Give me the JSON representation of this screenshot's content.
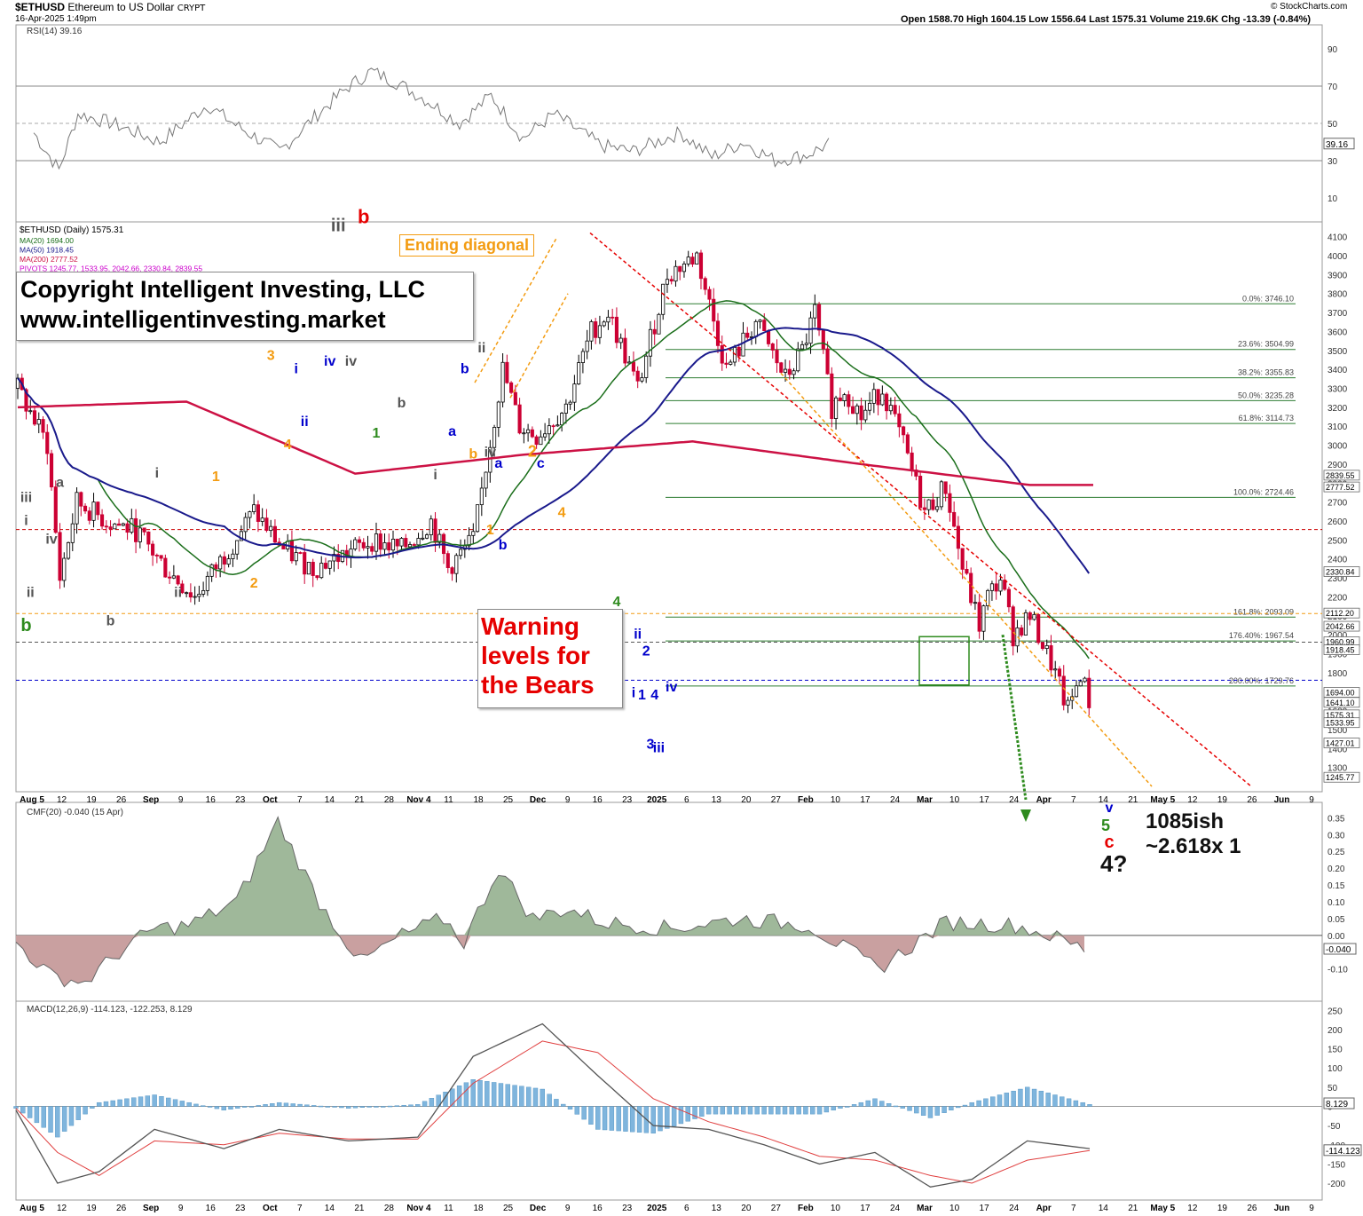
{
  "header": {
    "symbol": "$ETHUSD",
    "name": "Ethereum to US Dollar",
    "exchange": "CRYPT",
    "datetime": "16-Apr-2025 1:49pm",
    "ohlc": "Open 1588.70  High 1604.15  Low 1556.64  Last 1575.31  Volume 219.6K  Chg -13.39 (-0.84%)",
    "watermark": "© StockCharts.com"
  },
  "annotations": {
    "copyright_line1": "Copyright Intelligent Investing, LLC",
    "copyright_line2": "www.intelligentinvesting.market",
    "warning_line1": "Warning",
    "warning_line2": "levels for",
    "warning_line3": "the Bears",
    "ending_diagonal": "Ending diagonal",
    "target1": "1085ish",
    "target2": "~2.618x 1",
    "wave4q": "4?"
  },
  "colors": {
    "up_candle": "#000000",
    "down_candle": "#cc0033",
    "ma20": "#1a6e1a",
    "ma50": "#1a1a8c",
    "ma200": "#cc1144",
    "fib": "#2e7d32",
    "orange": "#f39c12",
    "red_label": "#e60000",
    "blue_label": "#0000cc",
    "gray_label": "#555555",
    "green_label": "#2e8b1e",
    "cmf_pos": "#9fb89a",
    "cmf_neg": "#c9a0a0",
    "macd_hist": "#7fb5dd"
  },
  "chart_data": [
    {
      "type": "line",
      "panel": "RSI",
      "title": "RSI(14) 39.16",
      "ylim": [
        0,
        100
      ],
      "yticks": [
        10,
        30,
        50,
        70,
        90
      ],
      "reference_lines": [
        30,
        70
      ],
      "last_value": "39.16",
      "anchors_x_day": [
        0,
        8,
        14,
        25,
        40,
        55,
        65,
        78,
        90,
        100,
        107,
        115,
        125,
        135,
        145,
        155,
        165,
        180,
        190,
        205,
        215,
        225,
        235,
        245,
        252
      ],
      "anchors_y": [
        45,
        25,
        55,
        50,
        40,
        60,
        48,
        35,
        55,
        70,
        78,
        72,
        62,
        50,
        65,
        42,
        55,
        38,
        35,
        45,
        32,
        40,
        30,
        33,
        39
      ]
    },
    {
      "type": "candlestick",
      "panel": "Price",
      "title": "$ETHUSD (Daily) 1575.31",
      "legend": [
        "MA(20) 1694.00",
        "MA(50) 1918.45",
        "MA(200) 2777.52",
        "PIVOTS 1245.77, 1533.95, 2042.66, 2330.84, 2839.55"
      ],
      "ylim": [
        1200,
        4150
      ],
      "yticks": [
        1300,
        1400,
        1500,
        1600,
        1700,
        1800,
        1900,
        2000,
        2100,
        2200,
        2300,
        2400,
        2500,
        2600,
        2700,
        2800,
        2900,
        3000,
        3100,
        3200,
        3300,
        3400,
        3500,
        3600,
        3700,
        3800,
        3900,
        4000,
        4100
      ],
      "right_labels": [
        "2839.55",
        "2777.52",
        "2330.84",
        "2112.20",
        "2042.66",
        "1960.99",
        "1918.45",
        "1694.00",
        "1641.10",
        "1575.31",
        "1533.95",
        "1427.01",
        "1245.77"
      ],
      "price_anchors_day": [
        0,
        7,
        10,
        14,
        21,
        28,
        35,
        42,
        49,
        56,
        63,
        70,
        77,
        84,
        91,
        98,
        102,
        108,
        115,
        119,
        123,
        130,
        136,
        140,
        147,
        154,
        161,
        168,
        175,
        182,
        186,
        189,
        193,
        196,
        200,
        205,
        210,
        215,
        220,
        224,
        228,
        230,
        233,
        236,
        240,
        245,
        249,
        252,
        255
      ],
      "price_anchors": [
        3300,
        3000,
        2300,
        2700,
        2600,
        2550,
        2350,
        2200,
        2420,
        2650,
        2450,
        2350,
        2420,
        2500,
        2450,
        2600,
        2350,
        2500,
        3400,
        3100,
        3050,
        3200,
        3600,
        3700,
        3300,
        3900,
        4000,
        3400,
        3650,
        3350,
        3500,
        3700,
        3200,
        3300,
        3150,
        3300,
        3000,
        2650,
        2780,
        2350,
        2050,
        2200,
        2300,
        2000,
        2100,
        1850,
        1600,
        1800,
        1575
      ],
      "fib_levels": [
        {
          "label": "0.0%: 3746.10",
          "value": 3746.1
        },
        {
          "label": "23.6%: 3504.99",
          "value": 3504.99
        },
        {
          "label": "38.2%: 3355.83",
          "value": 3355.83
        },
        {
          "label": "50.0%: 3235.28",
          "value": 3235.28
        },
        {
          "label": "61.8%: 3114.73",
          "value": 3114.73
        },
        {
          "label": "100.0%: 2724.46",
          "value": 2724.46
        },
        {
          "label": "161.8%: 2093.09",
          "value": 2093.09
        },
        {
          "label": "176.40%: 1967.54",
          "value": 1967.54
        },
        {
          "label": "200.00%: 1729.76",
          "value": 1729.76
        }
      ],
      "wave_labels": [
        {
          "t": "b",
          "d": 2,
          "p": 2020,
          "c": "green",
          "s": 20
        },
        {
          "t": "iii",
          "d": 2,
          "p": 2700,
          "c": "gray"
        },
        {
          "t": "i",
          "d": 2,
          "p": 2580,
          "c": "gray"
        },
        {
          "t": "ii",
          "d": 3,
          "p": 2200,
          "c": "gray"
        },
        {
          "t": "a",
          "d": 10,
          "p": 2780,
          "c": "gray"
        },
        {
          "t": "iv",
          "d": 8,
          "p": 2480,
          "c": "gray"
        },
        {
          "t": "b",
          "d": 22,
          "p": 2050,
          "c": "gray"
        },
        {
          "t": "i",
          "d": 33,
          "p": 2830,
          "c": "gray"
        },
        {
          "t": "ii",
          "d": 38,
          "p": 2200,
          "c": "gray"
        },
        {
          "t": "1",
          "d": 47,
          "p": 2810,
          "c": "orange"
        },
        {
          "t": "2",
          "d": 56,
          "p": 2250,
          "c": "orange"
        },
        {
          "t": "3",
          "d": 60,
          "p": 3450,
          "c": "orange"
        },
        {
          "t": "4",
          "d": 64,
          "p": 2980,
          "c": "orange"
        },
        {
          "t": "i",
          "d": 66,
          "p": 3380,
          "c": "blue"
        },
        {
          "t": "ii",
          "d": 68,
          "p": 3100,
          "c": "blue"
        },
        {
          "t": "iii",
          "d": 69,
          "p": 3660,
          "c": "blue"
        },
        {
          "t": "iv",
          "d": 74,
          "p": 3420,
          "c": "blue"
        },
        {
          "t": "iii",
          "d": 76,
          "p": 4130,
          "c": "gray",
          "s": 20
        },
        {
          "t": "iv",
          "d": 79,
          "p": 3420,
          "c": "gray"
        },
        {
          "t": "b",
          "d": 82,
          "p": 4170,
          "c": "red",
          "s": 22
        },
        {
          "t": "a",
          "d": 88,
          "p": 3560,
          "c": "gray"
        },
        {
          "t": "1",
          "d": 85,
          "p": 3040,
          "c": "green"
        },
        {
          "t": "b",
          "d": 91,
          "p": 3200,
          "c": "gray"
        },
        {
          "t": "2",
          "d": 95,
          "p": 3780,
          "c": "green",
          "s": 20
        },
        {
          "t": "a",
          "d": 101,
          "p": 3550,
          "c": "orange"
        },
        {
          "t": "b",
          "d": 106,
          "p": 3380,
          "c": "blue"
        },
        {
          "t": "a",
          "d": 103,
          "p": 3050,
          "c": "blue"
        },
        {
          "t": "i",
          "d": 99,
          "p": 2820,
          "c": "gray"
        },
        {
          "t": "ii",
          "d": 110,
          "p": 3490,
          "c": "gray"
        },
        {
          "t": "b",
          "d": 108,
          "p": 2930,
          "c": "orange"
        },
        {
          "t": "iv",
          "d": 112,
          "p": 2940,
          "c": "gray"
        },
        {
          "t": "a",
          "d": 114,
          "p": 2880,
          "c": "blue"
        },
        {
          "t": "1",
          "d": 112,
          "p": 2530,
          "c": "orange"
        },
        {
          "t": "b",
          "d": 115,
          "p": 2450,
          "c": "blue"
        },
        {
          "t": "iii",
          "d": 111,
          "p": 1990,
          "c": "gray"
        },
        {
          "t": "2",
          "d": 122,
          "p": 2940,
          "c": "orange",
          "s": 18
        },
        {
          "t": "c",
          "d": 124,
          "p": 2880,
          "c": "blue"
        },
        {
          "t": "4",
          "d": 129,
          "p": 2620,
          "c": "orange"
        },
        {
          "t": "3",
          "d": 128,
          "p": 1950,
          "c": "orange"
        },
        {
          "t": "3",
          "d": 134,
          "p": 1650,
          "c": "green"
        },
        {
          "t": "4",
          "d": 142,
          "p": 2150,
          "c": "green"
        },
        {
          "t": "ii",
          "d": 147,
          "p": 1980,
          "c": "blue"
        },
        {
          "t": "2",
          "d": 149,
          "p": 1890,
          "c": "blue"
        },
        {
          "t": "i",
          "d": 146,
          "p": 1670,
          "c": "blue"
        },
        {
          "t": "1",
          "d": 148,
          "p": 1660,
          "c": "blue"
        },
        {
          "t": "iv",
          "d": 155,
          "p": 1700,
          "c": "blue"
        },
        {
          "t": "4",
          "d": 151,
          "p": 1660,
          "c": "blue"
        },
        {
          "t": "3",
          "d": 150,
          "p": 1400,
          "c": "blue"
        },
        {
          "t": "iii",
          "d": 152,
          "p": 1380,
          "c": "blue"
        }
      ],
      "projection_labels": [
        {
          "t": "5",
          "c": "green"
        },
        {
          "t": "v",
          "c": "blue"
        },
        {
          "t": "c",
          "c": "red"
        }
      ]
    },
    {
      "type": "area",
      "panel": "CMF",
      "title": "CMF(20) -0.040 (15 Apr)",
      "ylim": [
        -0.18,
        0.38
      ],
      "yticks": [
        -0.1,
        0.0,
        0.05,
        0.1,
        0.15,
        0.2,
        0.25,
        0.3,
        0.35
      ],
      "tick_labels": [
        "-0.10",
        "0.00",
        "0.05",
        "0.10",
        "0.15",
        "0.20",
        "0.25",
        "0.30",
        "0.35"
      ],
      "last_value": "-0.040",
      "anchors_x_day": [
        0,
        5,
        10,
        15,
        20,
        25,
        32,
        38,
        44,
        50,
        56,
        62,
        65,
        70,
        75,
        80,
        85,
        95,
        105,
        115,
        125,
        135,
        145,
        150,
        155
      ],
      "anchors_y": [
        -0.02,
        -0.12,
        -0.14,
        -0.05,
        0.02,
        0.03,
        0.1,
        0.34,
        0.1,
        -0.08,
        0.0,
        0.05,
        -0.02,
        0.2,
        0.05,
        0.08,
        0.04,
        0.02,
        0.05,
        0.03,
        -0.1,
        0.04,
        0.03,
        0.0,
        -0.04
      ]
    },
    {
      "type": "bar",
      "panel": "MACD",
      "title": "MACD(12,26,9) -114.123, -122.253, 8.129",
      "legend": [
        "-114.123",
        "-122.253",
        "8.129"
      ],
      "ylim": [
        -230,
        260
      ],
      "yticks": [
        -200,
        -150,
        -100,
        -50,
        0,
        50,
        100,
        150,
        200,
        250
      ],
      "right_labels": [
        "8.129",
        "-114.123"
      ],
      "macd_anchors_day": [
        0,
        6,
        12,
        20,
        30,
        38,
        48,
        58,
        66,
        76,
        84,
        92,
        100,
        108,
        116,
        124,
        132,
        138,
        146,
        155
      ],
      "macd_anchors": [
        -10,
        -200,
        -170,
        -60,
        -110,
        -60,
        -90,
        -80,
        130,
        215,
        80,
        -50,
        -60,
        -100,
        -150,
        -120,
        -210,
        -190,
        -90,
        -110
      ],
      "signal_anchors": [
        -5,
        -120,
        -180,
        -90,
        -100,
        -70,
        -85,
        -85,
        60,
        170,
        140,
        20,
        -40,
        -80,
        -130,
        -140,
        -180,
        -200,
        -140,
        -115
      ]
    }
  ],
  "date_axis": {
    "labels": [
      "Aug 5",
      "12",
      "19",
      "26",
      "Sep",
      "9",
      "16",
      "23",
      "Oct",
      "7",
      "14",
      "21",
      "28",
      "Nov 4",
      "11",
      "18",
      "25",
      "Dec",
      "9",
      "16",
      "23",
      "2025",
      "6",
      "13",
      "20",
      "27",
      "Feb",
      "10",
      "17",
      "24",
      "Mar",
      "10",
      "17",
      "24",
      "Apr",
      "7",
      "14",
      "21",
      "May 5",
      "12",
      "19",
      "26",
      "Jun",
      "9"
    ],
    "bold": [
      "Aug 5",
      "Sep",
      "Oct",
      "Nov 4",
      "Dec",
      "2025",
      "Feb",
      "Mar",
      "Apr",
      "May 5",
      "Jun"
    ]
  }
}
